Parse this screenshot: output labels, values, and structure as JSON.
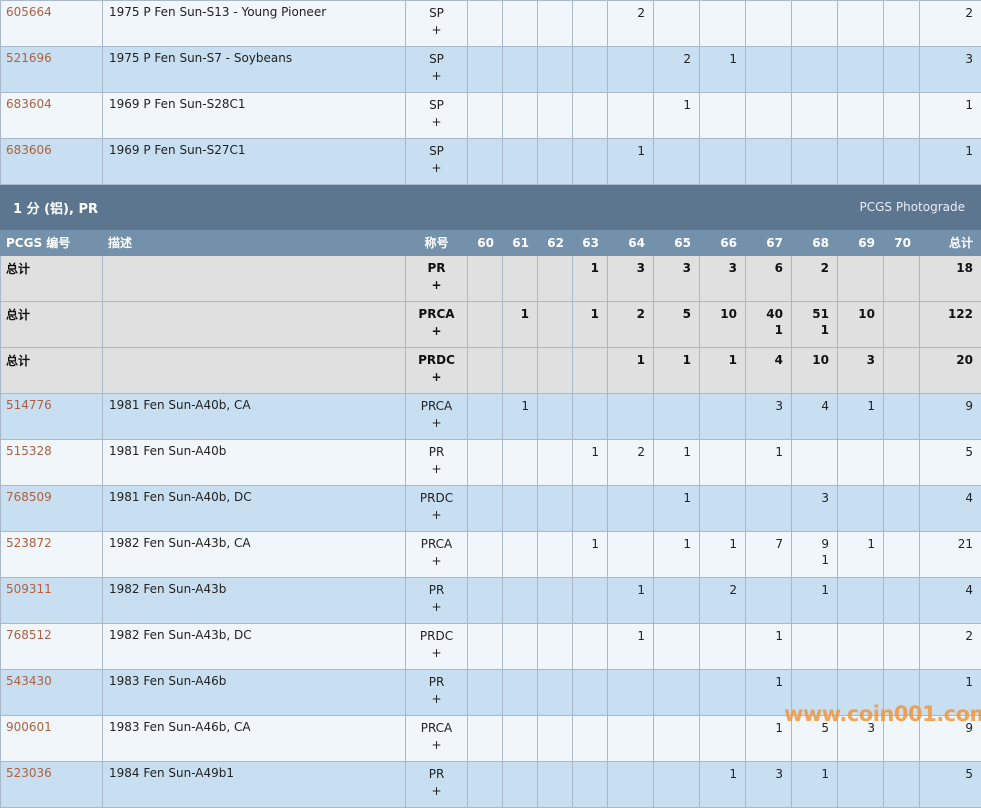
{
  "colors": {
    "link": "#b0603f",
    "band": "#5c7690",
    "header": "#7391ab",
    "row_blue": "#c8dff1",
    "row_light": "#f1f6fa",
    "total_row": "#e0e0e0",
    "watermark": "#f0963c"
  },
  "top_rows": [
    {
      "id": "605664",
      "desc": "1975 P Fen Sun-S13 - Young Pioneer",
      "des": "SP",
      "plus": "+",
      "style": "light",
      "cells": [
        "",
        "",
        "",
        "",
        "2",
        "",
        "",
        "",
        "",
        "",
        "",
        ""
      ],
      "total": "2"
    },
    {
      "id": "521696",
      "desc": "1975 P Fen Sun-S7 - Soybeans",
      "des": "SP",
      "plus": "+",
      "style": "blue",
      "cells": [
        "",
        "",
        "",
        "",
        "",
        "2",
        "1",
        "",
        "",
        "",
        "",
        ""
      ],
      "total": "3"
    },
    {
      "id": "683604",
      "desc": "1969 P Fen Sun-S28C1",
      "des": "SP",
      "plus": "+",
      "style": "light",
      "cells": [
        "",
        "",
        "",
        "",
        "",
        "1",
        "",
        "",
        "",
        "",
        "",
        ""
      ],
      "total": "1"
    },
    {
      "id": "683606",
      "desc": "1969 P Fen Sun-S27C1",
      "des": "SP",
      "plus": "+",
      "style": "blue",
      "cells": [
        "",
        "",
        "",
        "",
        "1",
        "",
        "",
        "",
        "",
        "",
        "",
        ""
      ],
      "total": "1"
    }
  ],
  "section": {
    "title": "1 分 (铝), PR",
    "photograde": "PCGS Photograde"
  },
  "columns": {
    "id": "PCGS 编号",
    "desc": "描述",
    "des": "称号",
    "grades": [
      "60",
      "61",
      "62",
      "63",
      "64",
      "65",
      "66",
      "67",
      "68",
      "69",
      "70"
    ],
    "total": "总计"
  },
  "rows": [
    {
      "id": "总计",
      "desc": "",
      "des": "PR",
      "plus": "+",
      "style": "total",
      "cells": [
        "",
        "",
        "",
        "1",
        "3",
        "3",
        "3",
        "6",
        "2",
        "",
        ""
      ],
      "total": "18"
    },
    {
      "id": "总计",
      "desc": "",
      "des": "PRCA",
      "plus": "+",
      "style": "total",
      "cells": [
        "",
        "1",
        "",
        "1",
        "2",
        "5",
        "10",
        "40\n1",
        "51\n1",
        "10",
        ""
      ],
      "total": "122"
    },
    {
      "id": "总计",
      "desc": "",
      "des": "PRDC",
      "plus": "+",
      "style": "total",
      "cells": [
        "",
        "",
        "",
        "",
        "1",
        "1",
        "1",
        "4",
        "10",
        "3",
        ""
      ],
      "total": "20"
    },
    {
      "id": "514776",
      "desc": "1981 Fen Sun-A40b, CA",
      "des": "PRCA",
      "plus": "+",
      "style": "blue",
      "cells": [
        "",
        "1",
        "",
        "",
        "",
        "",
        "",
        "3",
        "4",
        "1",
        ""
      ],
      "total": "9"
    },
    {
      "id": "515328",
      "desc": "1981 Fen Sun-A40b",
      "des": "PR",
      "plus": "+",
      "style": "light",
      "cells": [
        "",
        "",
        "",
        "1",
        "2",
        "1",
        "",
        "1",
        "",
        "",
        ""
      ],
      "total": "5"
    },
    {
      "id": "768509",
      "desc": "1981 Fen Sun-A40b, DC",
      "des": "PRDC",
      "plus": "+",
      "style": "blue",
      "cells": [
        "",
        "",
        "",
        "",
        "",
        "1",
        "",
        "",
        "3",
        "",
        ""
      ],
      "total": "4"
    },
    {
      "id": "523872",
      "desc": "1982 Fen Sun-A43b, CA",
      "des": "PRCA",
      "plus": "+",
      "style": "light",
      "cells": [
        "",
        "",
        "",
        "1",
        "",
        "1",
        "1",
        "7",
        "9\n1",
        "1",
        ""
      ],
      "total": "21"
    },
    {
      "id": "509311",
      "desc": "1982 Fen Sun-A43b",
      "des": "PR",
      "plus": "+",
      "style": "blue",
      "cells": [
        "",
        "",
        "",
        "",
        "1",
        "",
        "2",
        "",
        "1",
        "",
        ""
      ],
      "total": "4"
    },
    {
      "id": "768512",
      "desc": "1982 Fen Sun-A43b, DC",
      "des": "PRDC",
      "plus": "+",
      "style": "light",
      "cells": [
        "",
        "",
        "",
        "",
        "1",
        "",
        "",
        "1",
        "",
        "",
        ""
      ],
      "total": "2"
    },
    {
      "id": "543430",
      "desc": "1983 Fen Sun-A46b",
      "des": "PR",
      "plus": "+",
      "style": "blue",
      "cells": [
        "",
        "",
        "",
        "",
        "",
        "",
        "",
        "1",
        "",
        "",
        ""
      ],
      "total": "1"
    },
    {
      "id": "900601",
      "desc": "1983 Fen Sun-A46b, CA",
      "des": "PRCA",
      "plus": "+",
      "style": "light",
      "cells": [
        "",
        "",
        "",
        "",
        "",
        "",
        "",
        "1",
        "5",
        "3",
        ""
      ],
      "total": "9"
    },
    {
      "id": "523036",
      "desc": "1984 Fen Sun-A49b1",
      "des": "PR",
      "plus": "+",
      "style": "blue",
      "cells": [
        "",
        "",
        "",
        "",
        "",
        "",
        "1",
        "3",
        "1",
        "",
        ""
      ],
      "total": "5"
    }
  ],
  "watermark": "www.coin001.com"
}
